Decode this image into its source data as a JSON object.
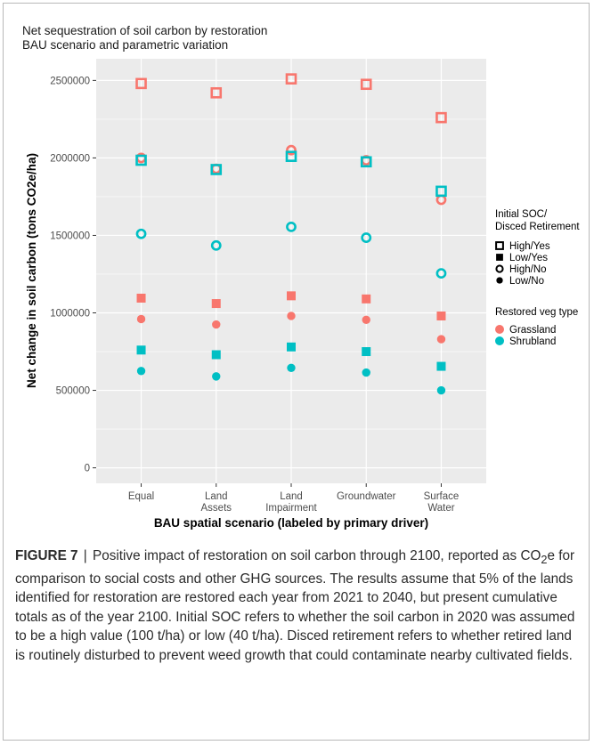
{
  "chart_data": {
    "type": "scatter",
    "title": "Net sequestration of soil carbon by restoration",
    "subtitle": "BAU scenario and parametric variation",
    "xlabel": "BAU spatial scenario (labeled by primary driver)",
    "ylabel": "Net change in soil carbon (tons CO2e/ha)",
    "categories": [
      [
        "Equal"
      ],
      [
        "Land",
        "Assets"
      ],
      [
        "Land",
        "Impairment"
      ],
      [
        "Groundwater"
      ],
      [
        "Surface",
        "Water"
      ]
    ],
    "yticks": [
      0,
      500000,
      1000000,
      1500000,
      2000000,
      2500000
    ],
    "ytick_labels": [
      "0",
      "500000",
      "1000000",
      "1500000",
      "2000000",
      "2500000"
    ],
    "ylim": [
      -100000,
      2640000
    ],
    "grid": true,
    "series": [
      {
        "veg": "Grassland",
        "soc": "High/Yes",
        "values": [
          2480000,
          2420000,
          2510000,
          2475000,
          2260000
        ]
      },
      {
        "veg": "Grassland",
        "soc": "High/No",
        "values": [
          2000000,
          1930000,
          2050000,
          1985000,
          1730000
        ]
      },
      {
        "veg": "Grassland",
        "soc": "Low/Yes",
        "values": [
          1095000,
          1060000,
          1110000,
          1090000,
          980000
        ]
      },
      {
        "veg": "Grassland",
        "soc": "Low/No",
        "values": [
          960000,
          925000,
          980000,
          955000,
          830000
        ]
      },
      {
        "veg": "Shrubland",
        "soc": "High/Yes",
        "values": [
          1985000,
          1925000,
          2010000,
          1975000,
          1785000
        ]
      },
      {
        "veg": "Shrubland",
        "soc": "High/No",
        "values": [
          1510000,
          1435000,
          1555000,
          1485000,
          1255000
        ]
      },
      {
        "veg": "Shrubland",
        "soc": "Low/Yes",
        "values": [
          760000,
          730000,
          780000,
          750000,
          655000
        ]
      },
      {
        "veg": "Shrubland",
        "soc": "Low/No",
        "values": [
          625000,
          590000,
          645000,
          615000,
          500000
        ]
      }
    ],
    "legend": {
      "placement": "right",
      "shape_title": [
        "Initial SOC/",
        "Disced Retirement"
      ],
      "shape_entries": [
        {
          "label": "High/Yes",
          "shape": "open-square"
        },
        {
          "label": "Low/Yes",
          "shape": "filled-square"
        },
        {
          "label": "High/No",
          "shape": "open-circle"
        },
        {
          "label": "Low/No",
          "shape": "filled-circle"
        }
      ],
      "color_title": "Restored veg type",
      "color_entries": [
        {
          "label": "Grassland",
          "color": "#F8766D"
        },
        {
          "label": "Shrubland",
          "color": "#00BFC4"
        }
      ]
    },
    "colors": {
      "Grassland": "#F8766D",
      "Shrubland": "#00BFC4",
      "panel": "#EBEBEB",
      "grid": "#ffffff"
    }
  },
  "caption": {
    "label": "FIGURE 7",
    "separator": "|",
    "text_1": "Positive impact of restoration on soil carbon through 2100, reported as CO",
    "sub": "2",
    "text_2": "e for comparison to social costs and other GHG sources. The results assume that 5% of the lands identified for restoration are restored each year from 2021 to 2040, but present cumulative totals as of the year 2100. Initial SOC refers to whether the soil carbon in 2020 was assumed to be a high value (100 t/ha) or low (40 t/ha). Disced retirement refers to whether retired land is routinely disturbed to prevent weed growth that could contaminate nearby cultivated fields."
  }
}
